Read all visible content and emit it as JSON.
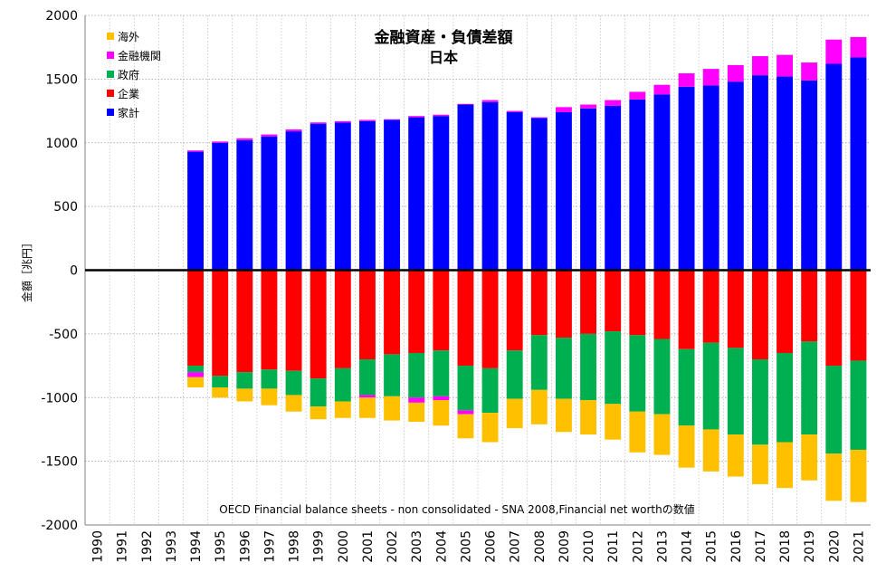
{
  "chart_data": {
    "type": "bar",
    "stacked": "diverging",
    "title": "金融資産・負債差額",
    "subtitle": "日本",
    "ylabel": "金額［兆円］",
    "xlabel": "",
    "note": "OECD Financial balance sheets - non consolidated - SNA 2008,Financial net worthの数値",
    "ylim": [
      -2000,
      2000
    ],
    "yticks": [
      2000,
      1500,
      1000,
      500,
      0,
      -500,
      -1000,
      -1500,
      -2000
    ],
    "grid": true,
    "legend_position": "top-left",
    "categories": [
      "1990",
      "1991",
      "1992",
      "1993",
      "1994",
      "1995",
      "1996",
      "1997",
      "1998",
      "1999",
      "2000",
      "2001",
      "2002",
      "2003",
      "2004",
      "2005",
      "2006",
      "2007",
      "2008",
      "2009",
      "2010",
      "2011",
      "2012",
      "2013",
      "2014",
      "2015",
      "2016",
      "2017",
      "2018",
      "2019",
      "2020",
      "2021"
    ],
    "series": [
      {
        "name": "家計",
        "color": "#0000ff",
        "values": [
          null,
          null,
          null,
          null,
          930,
          1000,
          1020,
          1050,
          1090,
          1150,
          1160,
          1170,
          1180,
          1200,
          1210,
          1300,
          1320,
          1240,
          1195,
          1240,
          1270,
          1290,
          1340,
          1380,
          1440,
          1450,
          1480,
          1530,
          1520,
          1490,
          1620,
          1670
        ]
      },
      {
        "name": "企業",
        "color": "#ff0000",
        "values": [
          null,
          null,
          null,
          null,
          -750,
          -830,
          -800,
          -780,
          -790,
          -850,
          -770,
          -700,
          -660,
          -650,
          -630,
          -750,
          -770,
          -630,
          -510,
          -530,
          -500,
          -480,
          -510,
          -540,
          -620,
          -570,
          -610,
          -700,
          -650,
          -560,
          -750,
          -710
        ]
      },
      {
        "name": "政府",
        "color": "#00b050",
        "values": [
          null,
          null,
          null,
          null,
          -50,
          -90,
          -130,
          -150,
          -190,
          -220,
          -260,
          -280,
          -330,
          -350,
          -360,
          -350,
          -350,
          -380,
          -430,
          -480,
          -520,
          -570,
          -600,
          -590,
          -600,
          -680,
          -680,
          -670,
          -700,
          -730,
          -690,
          -700
        ]
      },
      {
        "name": "金融機関",
        "color": "#ff00ff",
        "values": [
          null,
          null,
          null,
          null,
          10,
          10,
          15,
          15,
          15,
          10,
          10,
          10,
          5,
          10,
          10,
          5,
          15,
          10,
          5,
          40,
          30,
          45,
          60,
          75,
          105,
          130,
          130,
          150,
          170,
          140,
          190,
          160
        ]
      },
      {
        "name": "海外",
        "color": "#ffc000",
        "values": [
          null,
          null,
          null,
          null,
          -80,
          -80,
          -100,
          -130,
          -130,
          -100,
          -130,
          -160,
          -190,
          -150,
          -200,
          -190,
          -230,
          -230,
          -270,
          -260,
          -270,
          -280,
          -320,
          -320,
          -330,
          -330,
          -330,
          -310,
          -360,
          -360,
          -370,
          -410
        ]
      }
    ],
    "extra_negative": {
      "金融機関": [
        null,
        null,
        null,
        null,
        -40,
        0,
        0,
        0,
        0,
        0,
        0,
        -20,
        0,
        -40,
        -30,
        -30,
        0,
        0,
        0,
        0,
        0,
        0,
        0,
        0,
        0,
        0,
        0,
        0,
        0,
        0,
        0,
        0
      ]
    }
  }
}
